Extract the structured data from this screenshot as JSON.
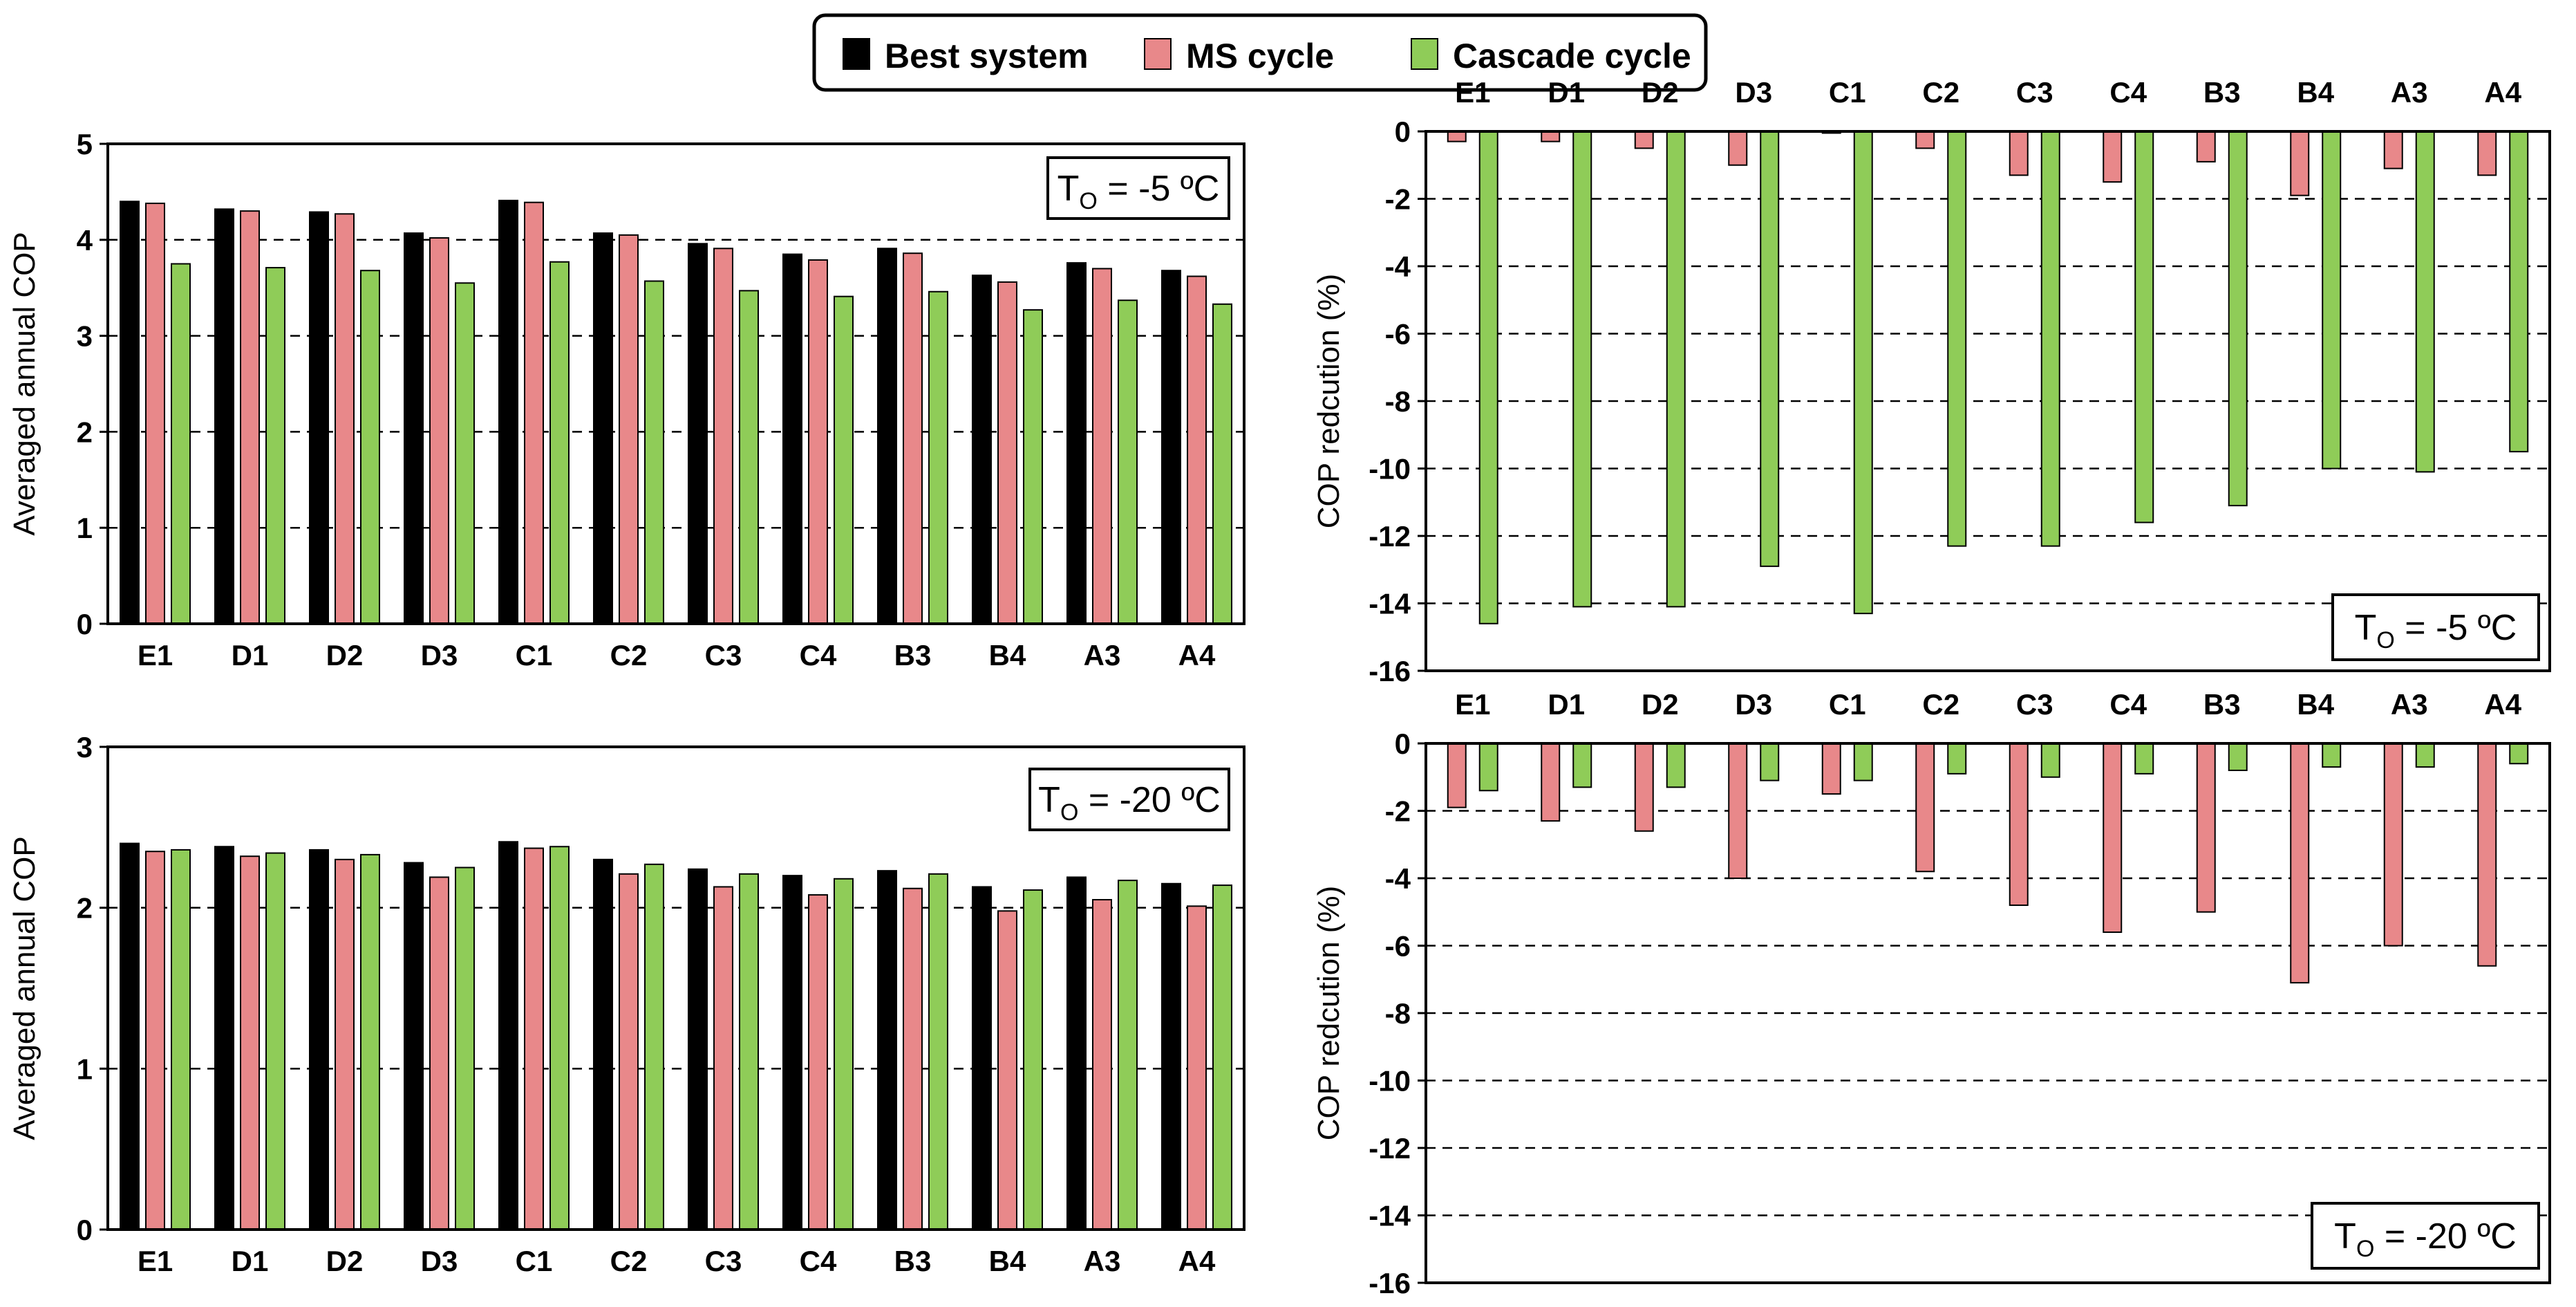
{
  "legend": {
    "items": [
      {
        "label": "Best system",
        "color": "#000000"
      },
      {
        "label": "MS cycle",
        "color": "#e8888a"
      },
      {
        "label": "Cascade cycle",
        "color": "#8fcc58"
      }
    ]
  },
  "chart_data": [
    {
      "id": "cop-minus5",
      "type": "bar",
      "title": "",
      "xlabel": "",
      "ylabel": "Averaged annual COP",
      "ylim": [
        0,
        5
      ],
      "yticks": [
        0,
        1,
        2,
        3,
        4,
        5
      ],
      "grid_lines": [
        1,
        2,
        3,
        4
      ],
      "condition": {
        "prefix": "T",
        "sub": "O",
        "suffix": " = -5 ºC"
      },
      "categories": [
        "E1",
        "D1",
        "D2",
        "D3",
        "C1",
        "C2",
        "C3",
        "C4",
        "B3",
        "B4",
        "A3",
        "A4"
      ],
      "series": [
        {
          "name": "Best system",
          "values": [
            4.4,
            4.32,
            4.29,
            4.07,
            4.41,
            4.07,
            3.96,
            3.85,
            3.91,
            3.63,
            3.76,
            3.68
          ]
        },
        {
          "name": "MS cycle",
          "values": [
            4.38,
            4.3,
            4.27,
            4.02,
            4.39,
            4.05,
            3.91,
            3.79,
            3.86,
            3.56,
            3.7,
            3.62
          ]
        },
        {
          "name": "Cascade cycle",
          "values": [
            3.75,
            3.71,
            3.68,
            3.55,
            3.77,
            3.57,
            3.47,
            3.41,
            3.46,
            3.27,
            3.37,
            3.33
          ]
        }
      ]
    },
    {
      "id": "red-minus5",
      "type": "bar",
      "title": "",
      "xlabel": "",
      "ylabel": "COP redcution (%)",
      "ylim": [
        -16,
        0
      ],
      "yticks": [
        0,
        -2,
        -4,
        -6,
        -8,
        -10,
        -12,
        -14,
        -16
      ],
      "grid_lines": [
        -2,
        -4,
        -6,
        -8,
        -10,
        -12,
        -14
      ],
      "condition": {
        "prefix": "T",
        "sub": "O",
        "suffix": " = -5 ºC"
      },
      "categories": [
        "E1",
        "D1",
        "D2",
        "D3",
        "C1",
        "C2",
        "C3",
        "C4",
        "B3",
        "B4",
        "A3",
        "A4"
      ],
      "series": [
        {
          "name": "MS cycle",
          "values": [
            -0.3,
            -0.3,
            -0.5,
            -1.0,
            -0.05,
            -0.5,
            -1.3,
            -1.5,
            -0.9,
            -1.9,
            -1.1,
            -1.3
          ]
        },
        {
          "name": "Cascade cycle",
          "values": [
            -14.6,
            -14.1,
            -14.1,
            -12.9,
            -14.3,
            -12.3,
            -12.3,
            -11.6,
            -11.1,
            -10.0,
            -10.1,
            -9.5
          ]
        }
      ]
    },
    {
      "id": "cop-minus20",
      "type": "bar",
      "title": "",
      "xlabel": "",
      "ylabel": "Averaged annual COP",
      "ylim": [
        0,
        3
      ],
      "yticks": [
        0,
        1,
        2,
        3
      ],
      "grid_lines": [
        1,
        2
      ],
      "condition": {
        "prefix": "T",
        "sub": "O",
        "suffix": " = -20 ºC"
      },
      "categories": [
        "E1",
        "D1",
        "D2",
        "D3",
        "C1",
        "C2",
        "C3",
        "C4",
        "B3",
        "B4",
        "A3",
        "A4"
      ],
      "series": [
        {
          "name": "Best system",
          "values": [
            2.4,
            2.38,
            2.36,
            2.28,
            2.41,
            2.3,
            2.24,
            2.2,
            2.23,
            2.13,
            2.19,
            2.15
          ]
        },
        {
          "name": "MS cycle",
          "values": [
            2.35,
            2.32,
            2.3,
            2.19,
            2.37,
            2.21,
            2.13,
            2.08,
            2.12,
            1.98,
            2.05,
            2.01
          ]
        },
        {
          "name": "Cascade cycle",
          "values": [
            2.36,
            2.34,
            2.33,
            2.25,
            2.38,
            2.27,
            2.21,
            2.18,
            2.21,
            2.11,
            2.17,
            2.14
          ]
        }
      ]
    },
    {
      "id": "red-minus20",
      "type": "bar",
      "title": "",
      "xlabel": "",
      "ylabel": "COP redcution (%)",
      "ylim": [
        -16,
        0
      ],
      "yticks": [
        0,
        -2,
        -4,
        -6,
        -8,
        -10,
        -12,
        -14,
        -16
      ],
      "grid_lines": [
        -2,
        -4,
        -6,
        -8,
        -10,
        -12,
        -14
      ],
      "condition": {
        "prefix": "T",
        "sub": "O",
        "suffix": " = -20 ºC"
      },
      "categories": [
        "E1",
        "D1",
        "D2",
        "D3",
        "C1",
        "C2",
        "C3",
        "C4",
        "B3",
        "B4",
        "A3",
        "A4"
      ],
      "series": [
        {
          "name": "MS cycle",
          "values": [
            -1.9,
            -2.3,
            -2.6,
            -4.0,
            -1.5,
            -3.8,
            -4.8,
            -5.6,
            -5.0,
            -7.1,
            -6.0,
            -6.6
          ]
        },
        {
          "name": "Cascade cycle",
          "values": [
            -1.4,
            -1.3,
            -1.3,
            -1.1,
            -1.1,
            -0.9,
            -1.0,
            -0.9,
            -0.8,
            -0.7,
            -0.7,
            -0.6
          ]
        }
      ]
    }
  ]
}
